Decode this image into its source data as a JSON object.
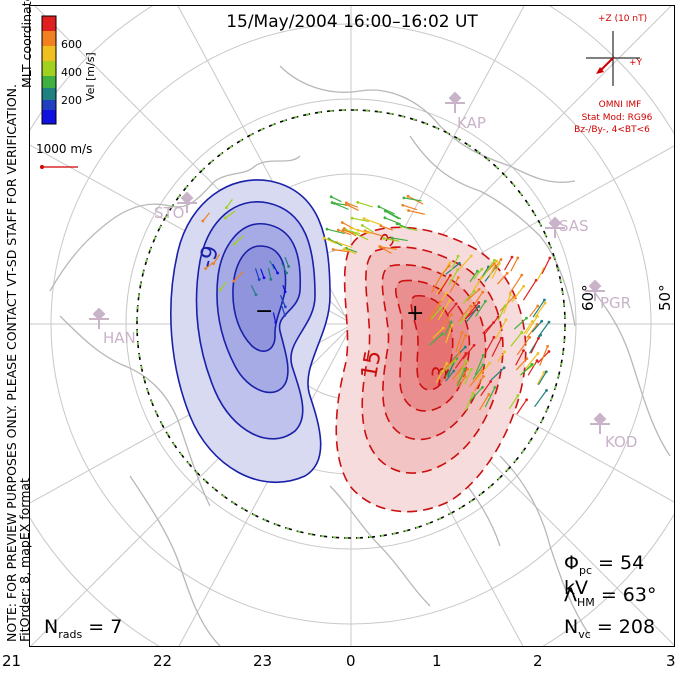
{
  "title": "15/May/2004 16:00–16:02 UT",
  "coord_label": "MLT coordinates",
  "colorbar": {
    "unit_label": "Vel [m/s]",
    "ticks": [
      "600",
      "400",
      "200"
    ],
    "colors": [
      "#e02020",
      "#f08020",
      "#f0c020",
      "#a0d020",
      "#40b040",
      "#208080",
      "#2040c0",
      "#1010e0"
    ]
  },
  "ref_vector": {
    "label": "1000 m/s",
    "color": "#d10000"
  },
  "imf": {
    "z_label": "+Z (10 nT)",
    "y_label": "+Y",
    "source": "OMNI IMF",
    "model": "Stat Mod: RG96",
    "condition": "Bz-/By-, 4<BT<6",
    "color": "#d10000"
  },
  "stations": [
    "KAP",
    "SAS",
    "PGR",
    "KOD",
    "STO",
    "HAN"
  ],
  "lat_labels": [
    "60°",
    "50°"
  ],
  "contour_labels": {
    "neg": "-9",
    "pos": "15",
    "pos2": "3",
    "pos3": "-3"
  },
  "centers": {
    "min": "−",
    "max": "+"
  },
  "stats": {
    "phi_pc": "Φpc = 54 kV",
    "phi_label": "Φ",
    "phi_sub": "pc",
    "phi_val": "= 54 kV",
    "lambda_label": "Λ",
    "lambda_sub": "HM",
    "lambda_val": "= 63°",
    "nvc_label": "N",
    "nvc_sub": "vc",
    "nvc_val": "= 208",
    "nrads_label": "N",
    "nrads_sub": "rads",
    "nrads_val": "= 7"
  },
  "notes": {
    "preview": "NOTE: FOR PREVIEW PURPOSES ONLY. PLEASE CONTACT VT-SD STAFF FOR VERIFICATION.",
    "fit": "FitOrder: 8, mapEX format"
  },
  "mlt_axis": [
    "21",
    "22",
    "23",
    "0",
    "1",
    "2",
    "3"
  ],
  "colors": {
    "negative": "#1a20a8",
    "positive": "#cc1010",
    "hmb": "#000000",
    "hmb_dash": "#7ad04a",
    "grid": "#c8c8c8",
    "land": "#b8b8b8"
  }
}
